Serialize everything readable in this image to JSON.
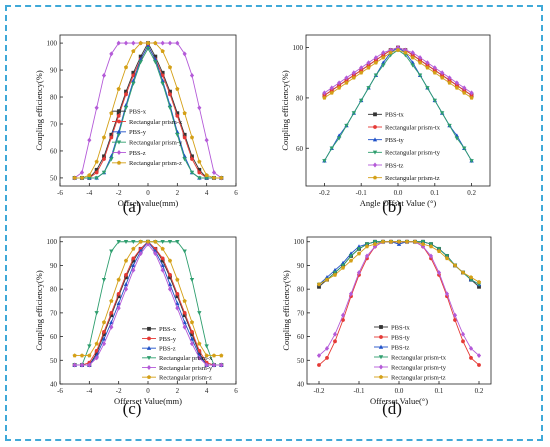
{
  "colors": {
    "frame": "#3fa9d8"
  },
  "chart_data": [
    {
      "type": "line",
      "panel_label": "(a)",
      "xlabel": "Offset value(mm)",
      "ylabel": "Coupling efficiency(%)",
      "xlim": [
        -6,
        6
      ],
      "ylim": [
        47,
        103
      ],
      "xticks": [
        "-6",
        "-4",
        "-2",
        "0",
        "2",
        "4",
        "6"
      ],
      "yticks": [
        "50",
        "60",
        "70",
        "80",
        "90",
        "100"
      ],
      "legend_position": "left-middle",
      "x": [
        -5,
        -4.5,
        -4,
        -3.5,
        -3,
        -2.5,
        -2,
        -1.5,
        -1,
        -0.5,
        0,
        0.5,
        1,
        1.5,
        2,
        2.5,
        3,
        3.5,
        4,
        4.5,
        5
      ],
      "series": [
        {
          "name": "PBS-x",
          "color": "#333333",
          "marker": "square",
          "values": [
            50,
            50,
            50,
            53,
            58,
            66,
            74,
            82,
            89,
            95,
            100,
            95,
            89,
            82,
            74,
            66,
            58,
            53,
            50,
            50,
            50
          ]
        },
        {
          "name": "Rectangular prism-x",
          "color": "#e53935",
          "marker": "circle",
          "values": [
            50,
            50,
            50,
            52,
            57,
            65,
            73,
            81,
            88,
            94,
            99,
            94,
            88,
            81,
            73,
            65,
            57,
            52,
            50,
            50,
            50
          ]
        },
        {
          "name": "PBS-y",
          "color": "#1e50c8",
          "marker": "triangle",
          "values": [
            50,
            50,
            50,
            50,
            52,
            58,
            67,
            77,
            86,
            94,
            99,
            94,
            86,
            77,
            67,
            58,
            52,
            50,
            50,
            50,
            50
          ]
        },
        {
          "name": "Rectangular prism-y",
          "color": "#2e9e6e",
          "marker": "triangle-down",
          "values": [
            50,
            50,
            50,
            50,
            52,
            57,
            66,
            76,
            85,
            93,
            98,
            93,
            85,
            76,
            66,
            57,
            52,
            50,
            50,
            50,
            50
          ]
        },
        {
          "name": "PBS-z",
          "color": "#b45ad8",
          "marker": "diamond",
          "values": [
            50,
            52,
            64,
            76,
            88,
            96,
            100,
            100,
            100,
            100,
            100,
            100,
            100,
            100,
            100,
            96,
            88,
            76,
            64,
            52,
            50
          ]
        },
        {
          "name": "Rectangular prism-z",
          "color": "#d4a017",
          "marker": "pentagon",
          "values": [
            50,
            50,
            51,
            56,
            65,
            74,
            83,
            91,
            97,
            100,
            100,
            100,
            97,
            91,
            83,
            74,
            65,
            56,
            51,
            50,
            50
          ]
        }
      ]
    },
    {
      "type": "line",
      "panel_label": "(b)",
      "xlabel": "Angle Offset Value (°)",
      "ylabel": "Coupling efficiency(%)",
      "xlim": [
        -0.25,
        0.25
      ],
      "ylim": [
        45,
        105
      ],
      "xticks": [
        "-0.2",
        "-0.1",
        "0.0",
        "0.1",
        "0.2"
      ],
      "yticks": [
        "60",
        "80",
        "100"
      ],
      "legend_position": "bottom-right",
      "x": [
        -0.2,
        -0.18,
        -0.16,
        -0.14,
        -0.12,
        -0.1,
        -0.08,
        -0.06,
        -0.04,
        -0.02,
        0,
        0.02,
        0.04,
        0.06,
        0.08,
        0.1,
        0.12,
        0.14,
        0.16,
        0.18,
        0.2
      ],
      "series": [
        {
          "name": "PBS-tx",
          "color": "#333333",
          "marker": "square",
          "values": [
            81,
            83,
            85,
            87,
            89,
            91,
            93,
            95,
            97,
            99,
            100,
            99,
            97,
            95,
            93,
            91,
            89,
            87,
            85,
            83,
            81
          ]
        },
        {
          "name": "Rectangular prism-tx",
          "color": "#e53935",
          "marker": "circle",
          "values": [
            81,
            83,
            85,
            87,
            89,
            91,
            93,
            95,
            97,
            99,
            100,
            99,
            97,
            95,
            93,
            91,
            89,
            87,
            85,
            83,
            81
          ]
        },
        {
          "name": "PBS-ty",
          "color": "#1e50c8",
          "marker": "triangle",
          "values": [
            55,
            60,
            65,
            69,
            74,
            79,
            84,
            89,
            94,
            98,
            100,
            98,
            94,
            89,
            84,
            79,
            74,
            69,
            65,
            60,
            55
          ]
        },
        {
          "name": "Rectangular prism-ty",
          "color": "#2e9e6e",
          "marker": "triangle-down",
          "values": [
            55,
            60,
            64,
            69,
            74,
            79,
            84,
            89,
            93,
            97,
            99,
            97,
            93,
            89,
            84,
            79,
            74,
            69,
            64,
            60,
            55
          ]
        },
        {
          "name": "PBS-tz",
          "color": "#b45ad8",
          "marker": "diamond",
          "values": [
            82,
            84,
            86,
            88,
            90,
            92,
            94,
            96,
            98,
            99,
            100,
            99,
            98,
            96,
            94,
            92,
            90,
            88,
            86,
            84,
            82
          ]
        },
        {
          "name": "Rectangular prism-tz",
          "color": "#d4a017",
          "marker": "pentagon",
          "values": [
            80,
            82,
            84,
            86,
            88,
            90,
            92,
            94,
            96,
            98,
            99,
            98,
            96,
            94,
            92,
            90,
            88,
            86,
            84,
            82,
            80
          ]
        }
      ]
    },
    {
      "type": "line",
      "panel_label": "(c)",
      "xlabel": "Offerset Value(mm)",
      "ylabel": "Coupling efficiency(%)",
      "xlim": [
        -6,
        6
      ],
      "ylim": [
        40,
        102
      ],
      "xticks": [
        "-6",
        "-4",
        "-2",
        "0",
        "2",
        "4",
        "6"
      ],
      "yticks": [
        "40",
        "50",
        "60",
        "70",
        "80",
        "90",
        "100"
      ],
      "legend_position": "bottom-right",
      "x": [
        -5,
        -4.5,
        -4,
        -3.5,
        -3,
        -2.5,
        -2,
        -1.5,
        -1,
        -0.5,
        0,
        0.5,
        1,
        1.5,
        2,
        2.5,
        3,
        3.5,
        4,
        4.5,
        5
      ],
      "series": [
        {
          "name": "PBS-x",
          "color": "#333333",
          "marker": "square",
          "values": [
            48,
            48,
            48,
            53,
            61,
            69,
            77,
            85,
            92,
            97,
            100,
            97,
            92,
            85,
            77,
            69,
            61,
            53,
            48,
            48,
            48
          ]
        },
        {
          "name": "PBS-y",
          "color": "#e53935",
          "marker": "circle",
          "values": [
            48,
            48,
            49,
            54,
            62,
            70,
            78,
            86,
            93,
            97,
            100,
            97,
            93,
            86,
            78,
            70,
            62,
            54,
            49,
            48,
            48
          ]
        },
        {
          "name": "PBS-z",
          "color": "#1e50c8",
          "marker": "triangle",
          "values": [
            48,
            48,
            48,
            52,
            59,
            66,
            74,
            82,
            90,
            96,
            100,
            96,
            90,
            82,
            74,
            66,
            59,
            52,
            48,
            48,
            48
          ]
        },
        {
          "name": "Rectangular prism-x",
          "color": "#2e9e6e",
          "marker": "triangle-down",
          "values": [
            48,
            48,
            56,
            70,
            84,
            96,
            100,
            100,
            100,
            100,
            100,
            100,
            100,
            100,
            100,
            96,
            84,
            70,
            56,
            48,
            48
          ]
        },
        {
          "name": "Rectangular prism-y",
          "color": "#b45ad8",
          "marker": "diamond",
          "values": [
            48,
            48,
            48,
            51,
            57,
            64,
            72,
            80,
            88,
            95,
            99,
            95,
            88,
            80,
            72,
            64,
            57,
            51,
            48,
            48,
            48
          ]
        },
        {
          "name": "Rectangular prism-z",
          "color": "#d4a017",
          "marker": "pentagon",
          "values": [
            52,
            52,
            52,
            57,
            66,
            75,
            84,
            92,
            97,
            100,
            100,
            100,
            97,
            92,
            84,
            75,
            66,
            57,
            52,
            52,
            52
          ]
        }
      ]
    },
    {
      "type": "line",
      "panel_label": "(d)",
      "xlabel": "Offerset Value(°)",
      "ylabel": "Coupling efficiency(%)",
      "xlim": [
        -0.23,
        0.23
      ],
      "ylim": [
        40,
        102
      ],
      "xticks": [
        "-0.2",
        "-0.1",
        "0.0",
        "0.1",
        "0.2"
      ],
      "yticks": [
        "40",
        "50",
        "60",
        "70",
        "80",
        "90",
        "100"
      ],
      "legend_position": "bottom-center",
      "x": [
        -0.2,
        -0.18,
        -0.16,
        -0.14,
        -0.12,
        -0.1,
        -0.08,
        -0.06,
        -0.04,
        -0.02,
        0,
        0.02,
        0.04,
        0.06,
        0.08,
        0.1,
        0.12,
        0.14,
        0.16,
        0.18,
        0.2
      ],
      "series": [
        {
          "name": "PBS-tx",
          "color": "#333333",
          "marker": "square",
          "values": [
            81,
            84,
            87,
            90,
            94,
            97,
            99,
            100,
            100,
            100,
            100,
            100,
            100,
            100,
            99,
            97,
            94,
            90,
            87,
            84,
            81
          ]
        },
        {
          "name": "PBS-ty",
          "color": "#e53935",
          "marker": "circle",
          "values": [
            48,
            51,
            58,
            67,
            77,
            86,
            93,
            98,
            100,
            100,
            100,
            100,
            100,
            98,
            93,
            86,
            77,
            67,
            58,
            51,
            48
          ]
        },
        {
          "name": "PBS-tz",
          "color": "#1e50c8",
          "marker": "triangle",
          "values": [
            82,
            85,
            88,
            91,
            95,
            98,
            99,
            100,
            100,
            100,
            99,
            100,
            100,
            100,
            99,
            97,
            94,
            90,
            87,
            84,
            82
          ]
        },
        {
          "name": "Rectangular prism-tx",
          "color": "#2e9e6e",
          "marker": "triangle-down",
          "values": [
            82,
            84,
            87,
            90,
            94,
            97,
            99,
            100,
            100,
            100,
            100,
            100,
            100,
            100,
            99,
            97,
            94,
            90,
            87,
            84,
            82
          ]
        },
        {
          "name": "Rectangular prism-ty",
          "color": "#b45ad8",
          "marker": "diamond",
          "values": [
            52,
            55,
            61,
            69,
            78,
            87,
            94,
            98,
            100,
            100,
            100,
            100,
            100,
            98,
            94,
            87,
            78,
            69,
            61,
            55,
            52
          ]
        },
        {
          "name": "Rectangular prism-tz",
          "color": "#d4a017",
          "marker": "pentagon",
          "values": [
            82,
            84,
            86,
            89,
            92,
            95,
            98,
            99,
            100,
            100,
            100,
            100,
            100,
            99,
            98,
            96,
            93,
            90,
            87,
            85,
            83
          ]
        }
      ]
    }
  ]
}
